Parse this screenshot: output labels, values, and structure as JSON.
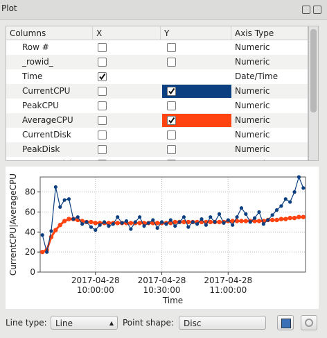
{
  "window": {
    "title": "Plot"
  },
  "table": {
    "columns": [
      "Columns",
      "X",
      "Y",
      "Axis Type"
    ],
    "rows": [
      {
        "name": "Row #",
        "x": false,
        "y": false,
        "axis_type": "Numeric"
      },
      {
        "name": "_rowid_",
        "x": false,
        "y": false,
        "axis_type": "Numeric"
      },
      {
        "name": "Time",
        "x": true,
        "y": null,
        "axis_type": "Date/Time"
      },
      {
        "name": "CurrentCPU",
        "x": false,
        "y": true,
        "axis_type": "Numeric"
      },
      {
        "name": "PeakCPU",
        "x": false,
        "y": false,
        "axis_type": "Numeric"
      },
      {
        "name": "AverageCPU",
        "x": false,
        "y": true,
        "axis_type": "Numeric"
      },
      {
        "name": "CurrentDisk",
        "x": false,
        "y": false,
        "axis_type": "Numeric"
      },
      {
        "name": "PeakDisk",
        "x": false,
        "y": false,
        "axis_type": "Numeric"
      },
      {
        "name": "AverageDisk",
        "x": false,
        "y": false,
        "axis_type": "Numeric"
      }
    ]
  },
  "chart_data": {
    "type": "line",
    "xlabel": "Time",
    "ylabel": "CurrentCPU|AverageCPU",
    "x": [
      "2017-04-28T09:36:00",
      "2017-04-28T09:38:00",
      "2017-04-28T09:40:00",
      "2017-04-28T09:42:00",
      "2017-04-28T09:44:00",
      "2017-04-28T09:46:00",
      "2017-04-28T09:48:00",
      "2017-04-28T09:50:00",
      "2017-04-28T09:52:00",
      "2017-04-28T09:54:00",
      "2017-04-28T09:56:00",
      "2017-04-28T09:58:00",
      "2017-04-28T10:00:00",
      "2017-04-28T10:02:00",
      "2017-04-28T10:04:00",
      "2017-04-28T10:06:00",
      "2017-04-28T10:08:00",
      "2017-04-28T10:10:00",
      "2017-04-28T10:12:00",
      "2017-04-28T10:14:00",
      "2017-04-28T10:16:00",
      "2017-04-28T10:18:00",
      "2017-04-28T10:20:00",
      "2017-04-28T10:22:00",
      "2017-04-28T10:24:00",
      "2017-04-28T10:26:00",
      "2017-04-28T10:28:00",
      "2017-04-28T10:30:00",
      "2017-04-28T10:32:00",
      "2017-04-28T10:34:00",
      "2017-04-28T10:36:00",
      "2017-04-28T10:38:00",
      "2017-04-28T10:40:00",
      "2017-04-28T10:42:00",
      "2017-04-28T10:44:00",
      "2017-04-28T10:46:00",
      "2017-04-28T10:48:00",
      "2017-04-28T10:50:00",
      "2017-04-28T10:52:00",
      "2017-04-28T10:54:00",
      "2017-04-28T10:56:00",
      "2017-04-28T10:58:00",
      "2017-04-28T11:00:00",
      "2017-04-28T11:02:00",
      "2017-04-28T11:04:00",
      "2017-04-28T11:06:00",
      "2017-04-28T11:08:00",
      "2017-04-28T11:10:00",
      "2017-04-28T11:12:00",
      "2017-04-28T11:14:00",
      "2017-04-28T11:16:00",
      "2017-04-28T11:18:00",
      "2017-04-28T11:20:00",
      "2017-04-28T11:22:00",
      "2017-04-28T11:24:00",
      "2017-04-28T11:26:00",
      "2017-04-28T11:28:00",
      "2017-04-28T11:30:00",
      "2017-04-28T11:32:00",
      "2017-04-28T11:34:00"
    ],
    "series": [
      {
        "name": "CurrentCPU",
        "color": "#0b3f7f",
        "values": [
          37,
          20,
          41,
          85,
          65,
          72,
          73,
          53,
          55,
          48,
          50,
          45,
          42,
          47,
          50,
          46,
          48,
          55,
          49,
          51,
          43,
          50,
          55,
          46,
          49,
          52,
          44,
          50,
          48,
          52,
          46,
          50,
          55,
          45,
          50,
          48,
          53,
          47,
          55,
          50,
          58,
          49,
          52,
          47,
          55,
          64,
          58,
          50,
          54,
          60,
          48,
          52,
          57,
          62,
          66,
          73,
          70,
          80,
          95,
          84
        ]
      },
      {
        "name": "AverageCPU",
        "color": "#ff4411",
        "values": [
          20,
          22,
          35,
          42,
          47,
          51,
          53,
          53,
          52,
          51,
          50,
          50,
          49,
          49,
          49,
          49,
          49,
          49,
          49,
          49,
          49,
          49,
          49,
          49,
          49,
          49,
          49,
          49,
          49,
          49,
          50,
          50,
          50,
          50,
          50,
          50,
          50,
          50,
          50,
          50,
          50,
          50,
          51,
          51,
          51,
          51,
          51,
          51,
          51,
          51,
          51,
          52,
          52,
          52,
          53,
          53,
          54,
          54,
          55,
          55
        ]
      }
    ],
    "xlim": [
      "2017-04-28T09:35:00",
      "2017-04-28T11:35:00"
    ],
    "xticks": [
      {
        "value": "2017-04-28T10:00:00",
        "label": "2017-04-28\n10:00:00"
      },
      {
        "value": "2017-04-28T10:30:00",
        "label": "2017-04-28\n10:30:00"
      },
      {
        "value": "2017-04-28T11:00:00",
        "label": "2017-04-28\n11:00:00"
      }
    ],
    "ylim": [
      0,
      95
    ],
    "yticks": [
      0,
      20,
      40,
      60,
      80
    ],
    "grid": true
  },
  "controls": {
    "line_type_label": "Line type:",
    "line_type": "Line",
    "point_shape_label": "Point shape:",
    "point_shape": "Disc"
  }
}
